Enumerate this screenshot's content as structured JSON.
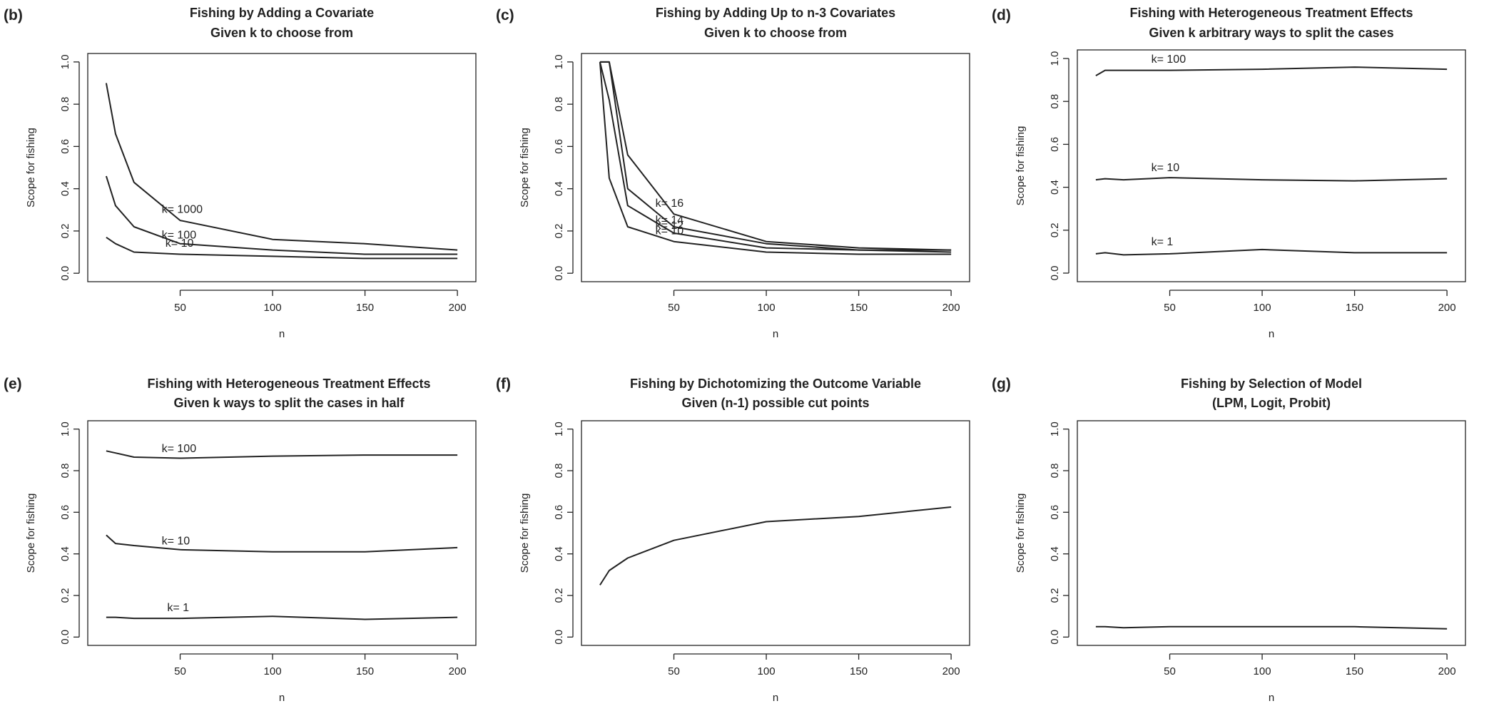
{
  "chart_data": [
    {
      "type": "line",
      "panel": "(b)",
      "title": [
        "Fishing by Adding a Covariate",
        "Given k to choose from"
      ],
      "xlabel": "n",
      "ylabel": "Scope for fishing",
      "xlim": [
        0,
        210
      ],
      "ylim": [
        -0.04,
        1.04
      ],
      "xticks": [
        50,
        100,
        150,
        200
      ],
      "yticks": [
        0.0,
        0.2,
        0.4,
        0.6,
        0.8,
        1.0
      ],
      "series": [
        {
          "name": "k= 1000",
          "x": [
            10,
            15,
            25,
            50,
            100,
            150,
            200
          ],
          "y": [
            0.9,
            0.66,
            0.43,
            0.25,
            0.16,
            0.14,
            0.11
          ],
          "label_at": [
            40,
            0.285
          ]
        },
        {
          "name": "k= 100",
          "x": [
            10,
            15,
            25,
            50,
            100,
            150,
            200
          ],
          "y": [
            0.46,
            0.32,
            0.22,
            0.14,
            0.11,
            0.09,
            0.09
          ],
          "label_at": [
            40,
            0.165
          ]
        },
        {
          "name": "k= 10",
          "x": [
            10,
            15,
            25,
            50,
            100,
            150,
            200
          ],
          "y": [
            0.17,
            0.14,
            0.1,
            0.09,
            0.08,
            0.07,
            0.07
          ],
          "label_at": [
            42,
            0.125
          ]
        }
      ]
    },
    {
      "type": "line",
      "panel": "(c)",
      "title": [
        "Fishing by Adding Up to n-3  Covariates",
        "Given k to choose from"
      ],
      "xlabel": "n",
      "ylabel": "Scope for fishing",
      "xlim": [
        0,
        210
      ],
      "ylim": [
        -0.04,
        1.04
      ],
      "xticks": [
        50,
        100,
        150,
        200
      ],
      "yticks": [
        0.0,
        0.2,
        0.4,
        0.6,
        0.8,
        1.0
      ],
      "series": [
        {
          "name": "k= 16",
          "x": [
            10,
            15,
            25,
            50,
            100,
            150,
            200
          ],
          "y": [
            1.0,
            1.0,
            0.56,
            0.28,
            0.15,
            0.12,
            0.11
          ],
          "label_at": [
            40,
            0.315
          ]
        },
        {
          "name": "k= 14",
          "x": [
            10,
            15,
            25,
            50,
            100,
            150,
            200
          ],
          "y": [
            1.0,
            1.0,
            0.4,
            0.22,
            0.14,
            0.11,
            0.11
          ],
          "label_at": [
            40,
            0.235
          ]
        },
        {
          "name": "k= 12",
          "x": [
            10,
            15,
            25,
            50,
            100,
            150,
            200
          ],
          "y": [
            1.0,
            0.82,
            0.32,
            0.19,
            0.12,
            0.11,
            0.1
          ],
          "label_at": [
            40,
            0.21
          ]
        },
        {
          "name": "k= 10",
          "x": [
            10,
            15,
            25,
            50,
            100,
            150,
            200
          ],
          "y": [
            1.0,
            0.45,
            0.22,
            0.15,
            0.1,
            0.09,
            0.09
          ],
          "label_at": [
            40,
            0.185
          ]
        }
      ]
    },
    {
      "type": "line",
      "panel": "(d)",
      "title": [
        "Fishing with Heterogeneous Treatment Effects",
        "Given k arbitrary ways to split the cases"
      ],
      "xlabel": "n",
      "ylabel": "Scope for fishing",
      "xlim": [
        0,
        210
      ],
      "ylim": [
        -0.04,
        1.04
      ],
      "xticks": [
        50,
        100,
        150,
        200
      ],
      "yticks": [
        0.0,
        0.2,
        0.4,
        0.6,
        0.8,
        1.0
      ],
      "series": [
        {
          "name": "k= 100",
          "x": [
            10,
            15,
            25,
            50,
            100,
            150,
            200
          ],
          "y": [
            0.92,
            0.945,
            0.945,
            0.945,
            0.95,
            0.96,
            0.95
          ],
          "label_at": [
            40,
            0.98
          ]
        },
        {
          "name": "k= 10",
          "x": [
            10,
            15,
            25,
            50,
            100,
            150,
            200
          ],
          "y": [
            0.435,
            0.44,
            0.435,
            0.445,
            0.435,
            0.43,
            0.44
          ],
          "label_at": [
            40,
            0.475
          ]
        },
        {
          "name": "k= 1",
          "x": [
            10,
            15,
            25,
            50,
            100,
            150,
            200
          ],
          "y": [
            0.09,
            0.095,
            0.085,
            0.09,
            0.11,
            0.095,
            0.095
          ],
          "label_at": [
            40,
            0.13
          ]
        }
      ]
    },
    {
      "type": "line",
      "panel": "(e)",
      "title": [
        "Fishing with Heterogeneous Treatment Effects",
        "Given k ways to split the cases in half"
      ],
      "xlabel": "n",
      "ylabel": "Scope for fishing",
      "xlim": [
        0,
        210
      ],
      "ylim": [
        -0.04,
        1.04
      ],
      "xticks": [
        50,
        100,
        150,
        200
      ],
      "yticks": [
        0.0,
        0.2,
        0.4,
        0.6,
        0.8,
        1.0
      ],
      "series": [
        {
          "name": "k= 100",
          "x": [
            10,
            15,
            25,
            50,
            100,
            150,
            200
          ],
          "y": [
            0.895,
            0.885,
            0.865,
            0.86,
            0.87,
            0.875,
            0.875
          ],
          "label_at": [
            40,
            0.89
          ]
        },
        {
          "name": "k= 10",
          "x": [
            10,
            15,
            25,
            50,
            100,
            150,
            200
          ],
          "y": [
            0.49,
            0.45,
            0.44,
            0.42,
            0.41,
            0.41,
            0.43
          ],
          "label_at": [
            40,
            0.445
          ]
        },
        {
          "name": "k= 1",
          "x": [
            10,
            15,
            25,
            50,
            100,
            150,
            200
          ],
          "y": [
            0.095,
            0.095,
            0.09,
            0.09,
            0.1,
            0.085,
            0.095
          ],
          "label_at": [
            43,
            0.125
          ]
        }
      ]
    },
    {
      "type": "line",
      "panel": "(f)",
      "title": [
        "Fishing by Dichotomizing the Outcome Variable",
        "Given (n-1) possible cut points"
      ],
      "xlabel": "n",
      "ylabel": "Scope for fishing",
      "xlim": [
        0,
        210
      ],
      "ylim": [
        -0.04,
        1.04
      ],
      "xticks": [
        50,
        100,
        150,
        200
      ],
      "yticks": [
        0.0,
        0.2,
        0.4,
        0.6,
        0.8,
        1.0
      ],
      "series": [
        {
          "name": "",
          "x": [
            10,
            15,
            25,
            50,
            100,
            150,
            200
          ],
          "y": [
            0.25,
            0.32,
            0.38,
            0.465,
            0.555,
            0.58,
            0.625
          ],
          "label_at": null
        }
      ]
    },
    {
      "type": "line",
      "panel": "(g)",
      "title": [
        "Fishing by Selection of Model",
        "(LPM, Logit,  Probit)"
      ],
      "xlabel": "n",
      "ylabel": "Scope for fishing",
      "xlim": [
        0,
        210
      ],
      "ylim": [
        -0.04,
        1.04
      ],
      "xticks": [
        50,
        100,
        150,
        200
      ],
      "yticks": [
        0.0,
        0.2,
        0.4,
        0.6,
        0.8,
        1.0
      ],
      "series": [
        {
          "name": "",
          "x": [
            10,
            15,
            25,
            50,
            100,
            150,
            200
          ],
          "y": [
            0.05,
            0.05,
            0.045,
            0.05,
            0.05,
            0.05,
            0.04
          ],
          "label_at": null
        }
      ]
    }
  ]
}
